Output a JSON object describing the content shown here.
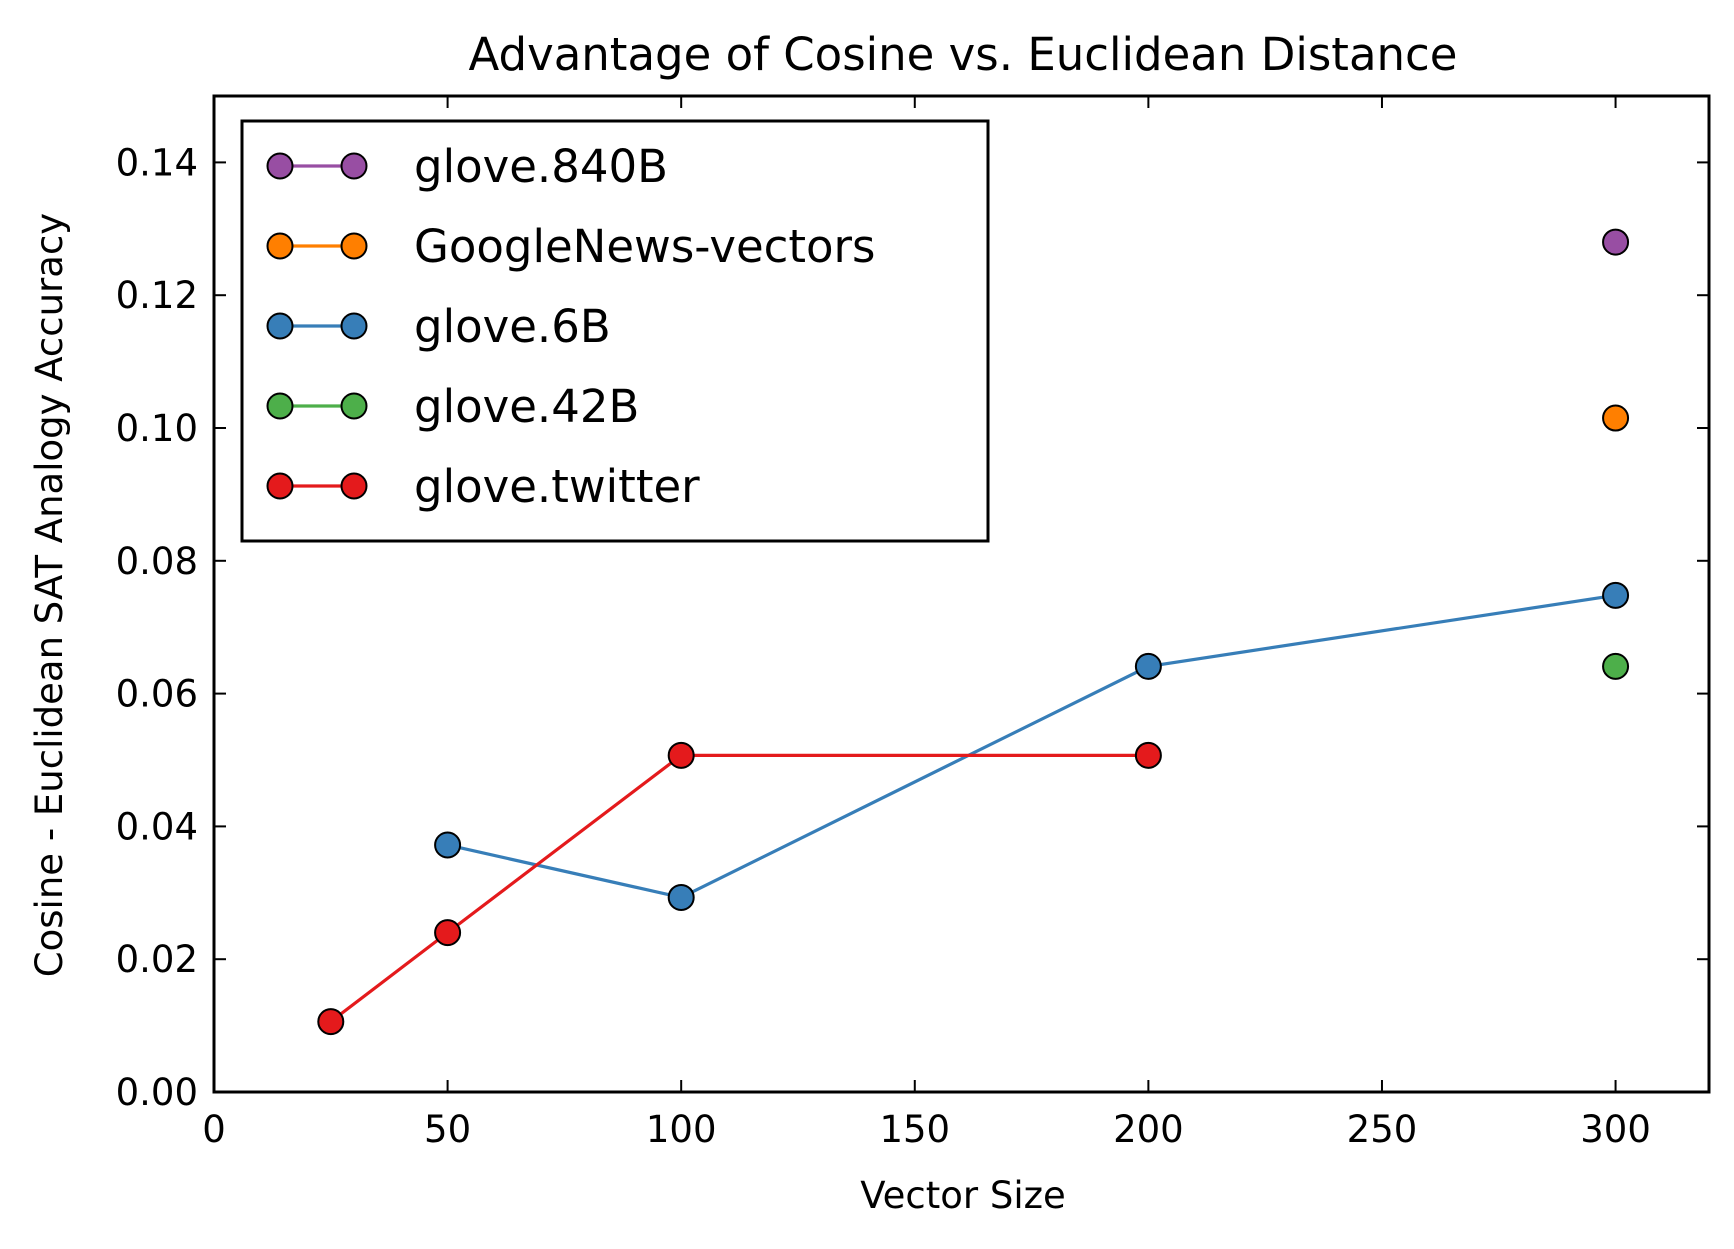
{
  "chart_data": {
    "type": "line",
    "title": "Advantage of Cosine vs. Euclidean Distance",
    "xlabel": "Vector Size",
    "ylabel": "Cosine - Euclidean SAT Analogy Accuracy",
    "xlim": [
      0,
      320
    ],
    "ylim": [
      0,
      0.15
    ],
    "xticks": [
      0,
      50,
      100,
      150,
      200,
      250,
      300
    ],
    "xtick_labels": [
      "0",
      "50",
      "100",
      "150",
      "200",
      "250",
      "300"
    ],
    "yticks": [
      0.0,
      0.02,
      0.04,
      0.06,
      0.08,
      0.1,
      0.12,
      0.14
    ],
    "ytick_labels": [
      "0.00",
      "0.02",
      "0.04",
      "0.06",
      "0.08",
      "0.10",
      "0.12",
      "0.14"
    ],
    "grid": false,
    "legend_position": "top-left",
    "series": [
      {
        "name": "glove.840B",
        "color": "#984ea3",
        "x": [
          300
        ],
        "y": [
          0.128
        ]
      },
      {
        "name": "GoogleNews-vectors",
        "color": "#ff7f00",
        "x": [
          300
        ],
        "y": [
          0.1015
        ]
      },
      {
        "name": "glove.6B",
        "color": "#377eb8",
        "x": [
          50,
          100,
          200,
          300
        ],
        "y": [
          0.0372,
          0.0293,
          0.0641,
          0.0748
        ]
      },
      {
        "name": "glove.42B",
        "color": "#4daf4a",
        "x": [
          300
        ],
        "y": [
          0.0641
        ]
      },
      {
        "name": "glove.twitter",
        "color": "#e41a1c",
        "x": [
          25,
          50,
          100,
          200
        ],
        "y": [
          0.0106,
          0.024,
          0.0507,
          0.0507
        ]
      }
    ]
  }
}
